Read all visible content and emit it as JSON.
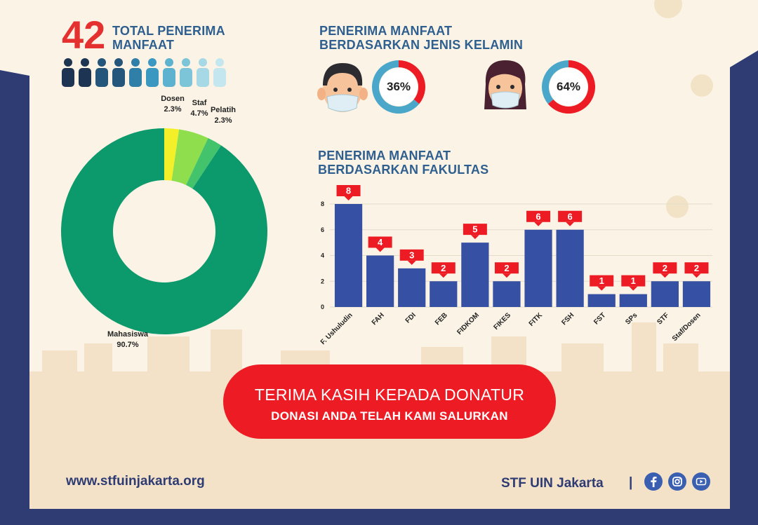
{
  "header": {
    "total_number": "42",
    "total_label_line1": "TOTAL PENERIMA",
    "total_label_line2": "MANFAAT"
  },
  "gender": {
    "title_line1": "PENERIMA MANFAAT",
    "title_line2": "BERDASARKAN JENIS KELAMIN",
    "male_pct_label": "36%",
    "female_pct_label": "64%"
  },
  "faculty_section": {
    "title_line1": "PENERIMA MANFAAT",
    "title_line2": "BERDASARKAN FAKULTAS"
  },
  "colors": {
    "brand_navy": "#2e3c73",
    "accent_red": "#e53030",
    "bar_blue": "#3651a3",
    "donut_green": "#0c9a6c"
  },
  "chart_data": [
    {
      "type": "pie",
      "categories": [
        "Dosen",
        "Staf",
        "Pelatih",
        "Mahasiswa"
      ],
      "values": [
        2.3,
        4.7,
        2.3,
        90.7
      ],
      "value_labels": [
        "2.3%",
        "4.7%",
        "2.3%",
        "90.7%"
      ],
      "colors": [
        "#f3f02a",
        "#8fde4d",
        "#43c36c",
        "#0c9a6c"
      ]
    },
    {
      "type": "pie",
      "categories": [
        "male",
        "rest"
      ],
      "values": [
        36,
        64
      ],
      "colors": [
        "#ed1c24",
        "#4ba7c9"
      ]
    },
    {
      "type": "pie",
      "categories": [
        "female",
        "rest"
      ],
      "values": [
        64,
        36
      ],
      "colors": [
        "#ed1c24",
        "#4ba7c9"
      ]
    },
    {
      "type": "bar",
      "categories": [
        "F. Ushuludin",
        "FAH",
        "FDI",
        "FEB",
        "FIDKOM",
        "FIKES",
        "FITK",
        "FSH",
        "FST",
        "SPs",
        "STF",
        "Staf/Dosen"
      ],
      "values": [
        8,
        4,
        3,
        2,
        5,
        2,
        6,
        6,
        1,
        1,
        2,
        2
      ],
      "ylim": [
        0,
        8
      ],
      "yticks": [
        0,
        2,
        4,
        6,
        8
      ],
      "grid": true
    }
  ],
  "banner": {
    "line1": "TERIMA KASIH KEPADA DONATUR",
    "line2": "DONASI ANDA TELAH KAMI SALURKAN"
  },
  "footer": {
    "website": "www.stfuinjakarta.org",
    "org_name": "STF UIN Jakarta",
    "separator": "|",
    "social_icons": [
      "facebook-icon",
      "instagram-icon",
      "youtube-icon"
    ]
  }
}
